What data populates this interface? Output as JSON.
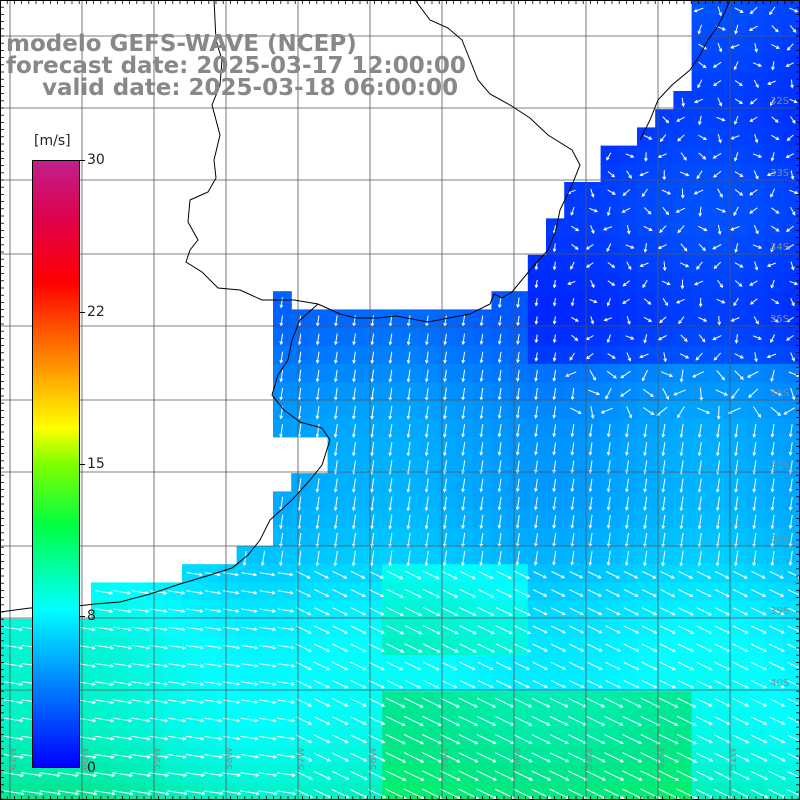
{
  "title": {
    "line1": "modelo GEFS-WAVE (NCEP)",
    "line2": "forecast date: 2025-03-17 12:00:00",
    "line3": "valid date: 2025-03-18 06:00:00"
  },
  "colorbar": {
    "unit": "[m/s]",
    "ticks": [
      "30",
      "22",
      "15",
      "8",
      "0"
    ],
    "tick_values": [
      30,
      22,
      15,
      8,
      0
    ],
    "colors": [
      "#0000ff",
      "#00ffff",
      "#00ff40",
      "#ffff00",
      "#ff0000",
      "#c0208c"
    ]
  },
  "lat_labels": [
    "32S",
    "33S",
    "34S",
    "35S",
    "36S",
    "37S",
    "38S",
    "39S",
    "40S"
  ],
  "lon_labels": [
    "61W",
    "60W",
    "59W",
    "58W",
    "57W",
    "56W",
    "55W",
    "54W",
    "53W",
    "52W",
    "51W"
  ],
  "colors": {
    "land": "#ffffff",
    "coast": "#000000",
    "grid": "#555555",
    "arrows": "#ffffff",
    "title": "#888888"
  }
}
